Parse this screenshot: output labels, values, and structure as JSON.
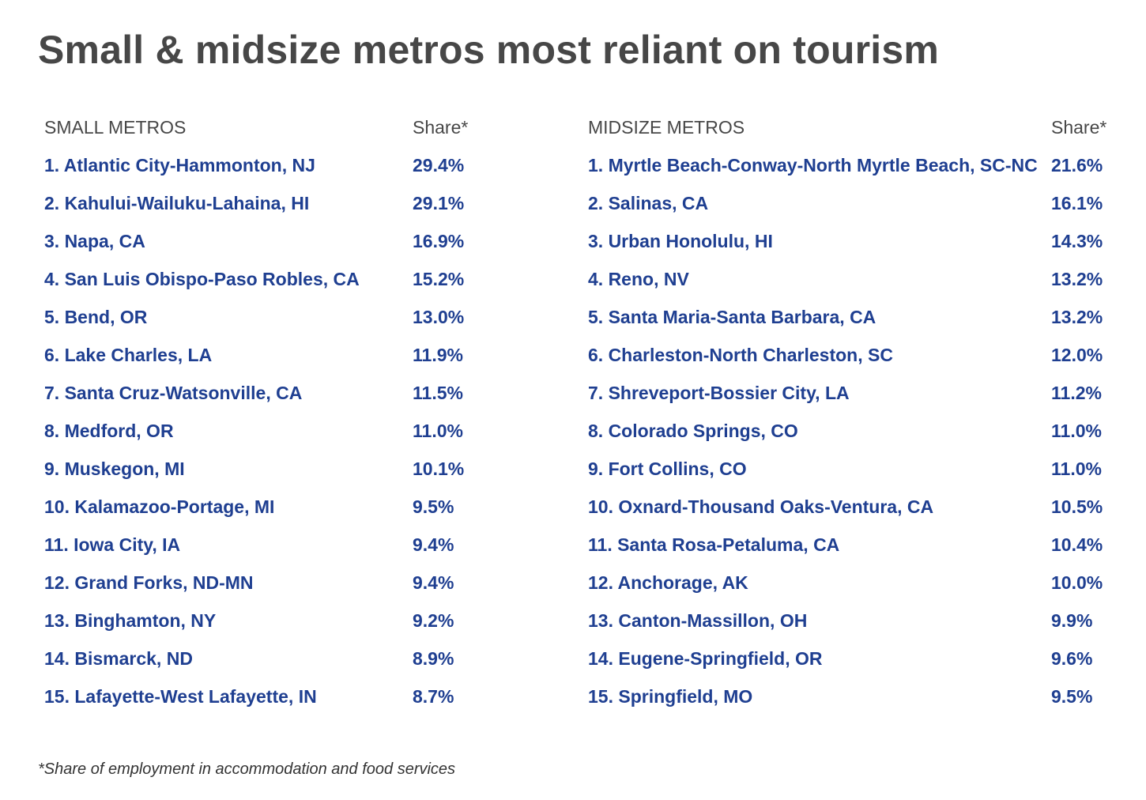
{
  "title": "Small & midsize metros most reliant on tourism",
  "footnote": "*Share of employment in accommodation and food services",
  "colors": {
    "title": "#474747",
    "header": "#474747",
    "rows": "#1f3f91",
    "background": "#ffffff"
  },
  "chart_data": {
    "type": "table",
    "tables": [
      {
        "columns": [
          "SMALL METROS",
          "Share*"
        ],
        "rows": [
          [
            "1. Atlantic City-Hammonton, NJ",
            "29.4%"
          ],
          [
            "2. Kahului-Wailuku-Lahaina, HI",
            "29.1%"
          ],
          [
            "3. Napa, CA",
            "16.9%"
          ],
          [
            "4. San Luis Obispo-Paso Robles, CA",
            "15.2%"
          ],
          [
            "5. Bend, OR",
            "13.0%"
          ],
          [
            "6. Lake Charles, LA",
            "11.9%"
          ],
          [
            "7. Santa Cruz-Watsonville, CA",
            "11.5%"
          ],
          [
            "8. Medford, OR",
            "11.0%"
          ],
          [
            "9. Muskegon, MI",
            "10.1%"
          ],
          [
            "10. Kalamazoo-Portage, MI",
            "9.5%"
          ],
          [
            "11. Iowa City, IA",
            "9.4%"
          ],
          [
            "12. Grand Forks, ND-MN",
            "9.4%"
          ],
          [
            "13. Binghamton, NY",
            "9.2%"
          ],
          [
            "14. Bismarck, ND",
            "8.9%"
          ],
          [
            "15. Lafayette-West Lafayette, IN",
            "8.7%"
          ]
        ]
      },
      {
        "columns": [
          "MIDSIZE METROS",
          "Share*"
        ],
        "rows": [
          [
            "1. Myrtle Beach-Conway-North Myrtle Beach, SC-NC",
            "21.6%"
          ],
          [
            "2. Salinas, CA",
            "16.1%"
          ],
          [
            "3. Urban Honolulu, HI",
            "14.3%"
          ],
          [
            "4. Reno, NV",
            "13.2%"
          ],
          [
            "5. Santa Maria-Santa Barbara, CA",
            "13.2%"
          ],
          [
            "6. Charleston-North Charleston, SC",
            "12.0%"
          ],
          [
            "7. Shreveport-Bossier City, LA",
            "11.2%"
          ],
          [
            "8. Colorado Springs, CO",
            "11.0%"
          ],
          [
            "9. Fort Collins, CO",
            "11.0%"
          ],
          [
            "10. Oxnard-Thousand Oaks-Ventura, CA",
            "10.5%"
          ],
          [
            "11. Santa Rosa-Petaluma, CA",
            "10.4%"
          ],
          [
            "12. Anchorage, AK",
            "10.0%"
          ],
          [
            "13. Canton-Massillon, OH",
            "9.9%"
          ],
          [
            "14. Eugene-Springfield, OR",
            "9.6%"
          ],
          [
            "15. Springfield, MO",
            "9.5%"
          ]
        ]
      }
    ]
  }
}
